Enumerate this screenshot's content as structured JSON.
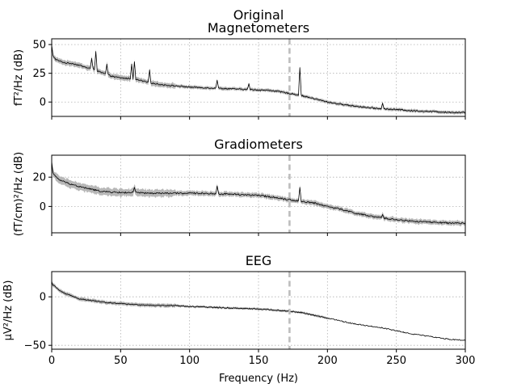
{
  "figure": {
    "title": "Original",
    "xlabel": "Frequency (Hz)"
  },
  "chart_data": [
    {
      "type": "line",
      "title": "Magnetometers",
      "xlabel": "",
      "ylabel": "fT²/Hz (dB)",
      "xlim": [
        0,
        300
      ],
      "ylim": [
        -12.5,
        55
      ],
      "xticks": [
        0,
        50,
        100,
        150,
        200,
        250,
        300
      ],
      "xticklabels": [
        "",
        "",
        "",
        "",
        "",
        "",
        ""
      ],
      "yticks": [
        0,
        25,
        50
      ],
      "yticklabels": [
        "0",
        "25",
        "50"
      ],
      "grid": true,
      "vline_x": 172.5,
      "curve_x": [
        0,
        1,
        3,
        6,
        10,
        15,
        20,
        25,
        30,
        35,
        40,
        45,
        50,
        55,
        60,
        70,
        80,
        90,
        100,
        110,
        120,
        130,
        140,
        150,
        160,
        170,
        180,
        190,
        200,
        210,
        220,
        230,
        240,
        250,
        260,
        270,
        280,
        290,
        300
      ],
      "curve_y": [
        49,
        40,
        37,
        35.5,
        34,
        33.5,
        32,
        30,
        29,
        26,
        24,
        22,
        21,
        20.5,
        20,
        17,
        15,
        14,
        13,
        12.5,
        12,
        11.5,
        11,
        10.5,
        10,
        8,
        6,
        3,
        0,
        -2,
        -3.5,
        -5,
        -6,
        -6.5,
        -7.5,
        -8,
        -8.5,
        -9,
        -9
      ],
      "band_halfwidth": 1.3,
      "peaks": [
        {
          "x": 29,
          "y": 38
        },
        {
          "x": 32,
          "y": 44
        },
        {
          "x": 40,
          "y": 33
        },
        {
          "x": 58,
          "y": 33
        },
        {
          "x": 60,
          "y": 35
        },
        {
          "x": 71,
          "y": 28
        },
        {
          "x": 120,
          "y": 19
        },
        {
          "x": 143,
          "y": 16
        },
        {
          "x": 180,
          "y": 30
        },
        {
          "x": 240,
          "y": -1
        }
      ]
    },
    {
      "type": "line",
      "title": "Gradiometers",
      "xlabel": "",
      "ylabel": "(fT/cm)²/Hz (dB)",
      "xlim": [
        0,
        300
      ],
      "ylim": [
        -18,
        35
      ],
      "xticks": [
        0,
        50,
        100,
        150,
        200,
        250,
        300
      ],
      "xticklabels": [
        "",
        "",
        "",
        "",
        "",
        "",
        ""
      ],
      "yticks": [
        0,
        20
      ],
      "yticklabels": [
        "0",
        "20"
      ],
      "grid": true,
      "vline_x": 172.5,
      "curve_x": [
        0,
        1,
        3,
        6,
        10,
        15,
        20,
        25,
        30,
        35,
        40,
        50,
        60,
        70,
        80,
        90,
        100,
        110,
        120,
        130,
        140,
        150,
        160,
        170,
        180,
        190,
        200,
        210,
        220,
        230,
        240,
        250,
        260,
        270,
        280,
        290,
        300
      ],
      "curve_y": [
        30,
        23,
        20,
        18,
        16.5,
        15,
        13.5,
        12.5,
        11.5,
        10.5,
        10,
        9.5,
        9.5,
        9,
        9,
        9,
        9,
        9,
        8.5,
        8.5,
        8,
        7.5,
        6.5,
        5,
        3.5,
        2.5,
        0,
        -2,
        -4.5,
        -6.5,
        -8,
        -9,
        -10,
        -10.5,
        -11,
        -11.5,
        -11.5
      ],
      "band_halfwidth": 1.5,
      "peaks": [
        {
          "x": 60,
          "y": 13
        },
        {
          "x": 120,
          "y": 14
        },
        {
          "x": 180,
          "y": 13
        },
        {
          "x": 240,
          "y": -5.5
        }
      ]
    },
    {
      "type": "line",
      "title": "EEG",
      "xlabel": "Frequency (Hz)",
      "ylabel": "µV²/Hz (dB)",
      "xlim": [
        0,
        300
      ],
      "ylim": [
        -54,
        26
      ],
      "xticks": [
        0,
        50,
        100,
        150,
        200,
        250,
        300
      ],
      "xticklabels": [
        "0",
        "50",
        "100",
        "150",
        "200",
        "250",
        "300"
      ],
      "yticks": [
        -50,
        0
      ],
      "yticklabels": [
        "−50",
        "0"
      ],
      "grid": true,
      "vline_x": 172.5,
      "curve_x": [
        0,
        1,
        3,
        6,
        10,
        15,
        20,
        25,
        30,
        40,
        50,
        60,
        70,
        80,
        90,
        100,
        110,
        120,
        130,
        140,
        150,
        160,
        170,
        180,
        190,
        200,
        210,
        220,
        230,
        240,
        250,
        260,
        270,
        280,
        290,
        300
      ],
      "curve_y": [
        15,
        12,
        10,
        6,
        3,
        1,
        -2,
        -3,
        -4,
        -6,
        -7,
        -8,
        -8.5,
        -9,
        -9,
        -10,
        -10.5,
        -11,
        -11.5,
        -12,
        -12.5,
        -13.5,
        -14.5,
        -16,
        -19,
        -22,
        -25,
        -28,
        -30,
        -32,
        -35,
        -38,
        -40,
        -42,
        -44,
        -45
      ],
      "band_halfwidth": 1.1,
      "band_to_x": 200,
      "peaks": []
    }
  ]
}
